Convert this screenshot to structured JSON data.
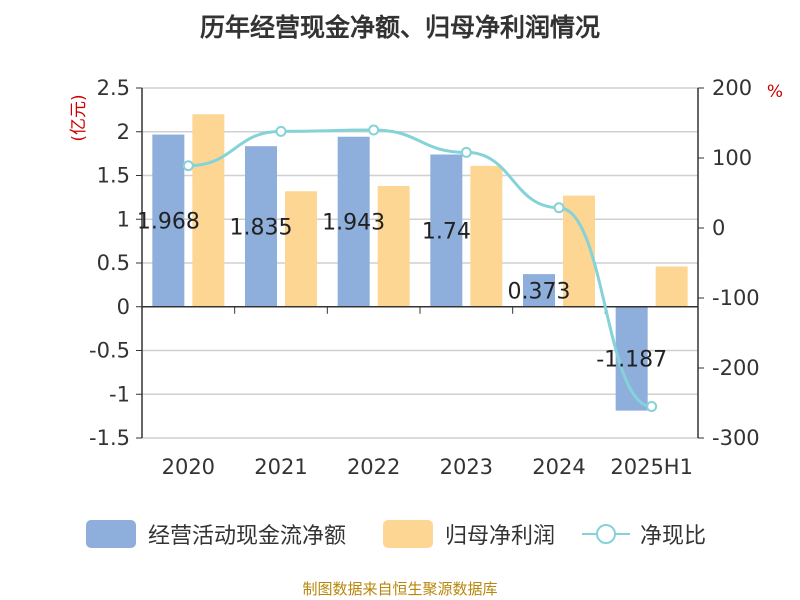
{
  "title": "历年经营现金净额、归母净利润情况",
  "source": "制图数据来自恒生聚源数据库",
  "colors": {
    "cash_flow": "#8eaedb",
    "net_profit": "#fed694",
    "ratio": "#85d2d8",
    "axis_unit": "#cc0000",
    "text": "#333333"
  },
  "chart_data": {
    "type": "bar",
    "categories": [
      "2020",
      "2021",
      "2022",
      "2023",
      "2024",
      "2025H1"
    ],
    "series": [
      {
        "name": "经营活动现金流净额",
        "type": "bar",
        "axis": "left",
        "values": [
          1.968,
          1.835,
          1.943,
          1.74,
          0.373,
          -1.187
        ],
        "labels": [
          "1.968",
          "1.835",
          "1.943",
          "1.74",
          "0.373",
          "-1.187"
        ]
      },
      {
        "name": "归母净利润",
        "type": "bar",
        "axis": "left",
        "values": [
          2.2,
          1.32,
          1.38,
          1.61,
          1.27,
          0.46
        ]
      },
      {
        "name": "净现比",
        "type": "line",
        "axis": "right",
        "values": [
          89,
          138,
          140,
          108,
          29,
          -255
        ]
      }
    ],
    "y_left": {
      "label": "(亿元)",
      "ylim": [
        -1.5,
        2.5
      ],
      "ticks": [
        "2.5",
        "2",
        "1.5",
        "1",
        "0.5",
        "0",
        "-0.5",
        "-1",
        "-1.5"
      ]
    },
    "y_right": {
      "label": "%",
      "ylim": [
        -300,
        200
      ],
      "ticks": [
        "200",
        "100",
        "0",
        "-100",
        "-200",
        "-300"
      ]
    },
    "grid": true,
    "legend_position": "bottom"
  },
  "legend": {
    "cash_flow": "经营活动现金流净额",
    "net_profit": "归母净利润",
    "ratio": "净现比"
  }
}
